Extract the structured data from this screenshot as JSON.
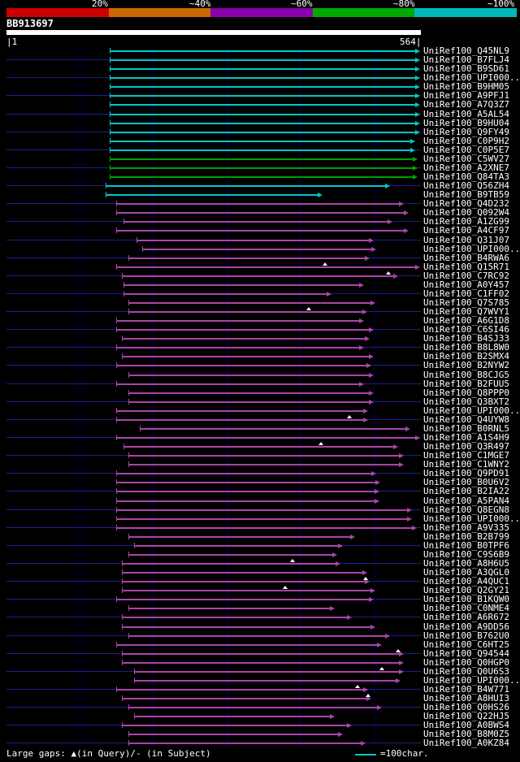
{
  "scalebar": {
    "labels": [
      "20%",
      "~40%",
      "~60%",
      "~80%",
      "~100%"
    ],
    "colors": [
      "#cc0000",
      "#cc6600",
      "#8800aa",
      "#00aa00",
      "#00b8b8"
    ]
  },
  "query": {
    "name": "BB913697",
    "start_label": "|1",
    "end_label": "564|",
    "length": 564
  },
  "legend": {
    "gaps_text": "Large gaps: ▲(in Query)/- (in Subject)",
    "scale_text": "=100char."
  },
  "chart_data": {
    "type": "bar",
    "orientation": "horizontal",
    "x_range": [
      1,
      564
    ],
    "grid_positions": [
      100,
      200,
      300,
      400,
      500
    ],
    "colors": {
      "cyan": "#00c8c8",
      "green": "#00a000",
      "purple": "#aa44aa"
    },
    "rows": [
      {
        "label": "UniRef100_Q45NL9",
        "color": "cyan",
        "start": 141,
        "end": 563
      },
      {
        "label": "UniRef100_B7FLJ4",
        "color": "cyan",
        "start": 141,
        "end": 563
      },
      {
        "label": "UniRef100_B9SD61",
        "color": "cyan",
        "start": 141,
        "end": 563
      },
      {
        "label": "UniRef100_UPI000..",
        "color": "cyan",
        "start": 141,
        "end": 563
      },
      {
        "label": "UniRef100_B9HM05",
        "color": "cyan",
        "start": 141,
        "end": 563
      },
      {
        "label": "UniRef100_A9PFJ1",
        "color": "cyan",
        "start": 141,
        "end": 563
      },
      {
        "label": "UniRef100_A7Q3Z7",
        "color": "cyan",
        "start": 141,
        "end": 563
      },
      {
        "label": "UniRef100_A5AL54",
        "color": "cyan",
        "start": 141,
        "end": 563
      },
      {
        "label": "UniRef100_B9HU04",
        "color": "cyan",
        "start": 141,
        "end": 563
      },
      {
        "label": "UniRef100_Q9FY49",
        "color": "cyan",
        "start": 141,
        "end": 563
      },
      {
        "label": "UniRef100_C0P9H2",
        "color": "cyan",
        "start": 141,
        "end": 556
      },
      {
        "label": "UniRef100_C0P5E7",
        "color": "cyan",
        "start": 141,
        "end": 556
      },
      {
        "label": "UniRef100_C5WV27",
        "color": "green",
        "start": 141,
        "end": 559
      },
      {
        "label": "UniRef100_A2XNE7",
        "color": "green",
        "start": 141,
        "end": 559
      },
      {
        "label": "UniRef100_Q84TA3",
        "color": "green",
        "start": 141,
        "end": 559
      },
      {
        "label": "UniRef100_Q56ZH4",
        "color": "cyan",
        "start": 136,
        "end": 522
      },
      {
        "label": "UniRef100_B9TB59",
        "color": "cyan",
        "start": 136,
        "end": 430
      },
      {
        "label": "UniRef100_Q4D232",
        "color": "purple",
        "start": 150,
        "end": 541
      },
      {
        "label": "UniRef100_Q092W4",
        "color": "purple",
        "start": 150,
        "end": 547
      },
      {
        "label": "UniRef100_A1ZG99",
        "color": "purple",
        "start": 160,
        "end": 525
      },
      {
        "label": "UniRef100_A4CF97",
        "color": "purple",
        "start": 150,
        "end": 547
      },
      {
        "label": "UniRef100_Q31J07",
        "color": "purple",
        "start": 178,
        "end": 500
      },
      {
        "label": "UniRef100_UPI000..",
        "color": "purple",
        "start": 185,
        "end": 503
      },
      {
        "label": "UniRef100_B4RWA6",
        "color": "purple",
        "start": 167,
        "end": 494
      },
      {
        "label": "UniRef100_Q15R71",
        "color": "purple",
        "start": 150,
        "end": 563,
        "gaps": [
          434
        ]
      },
      {
        "label": "UniRef100_C7RC92",
        "color": "purple",
        "start": 158,
        "end": 533,
        "gaps": [
          520
        ]
      },
      {
        "label": "UniRef100_A0Y457",
        "color": "purple",
        "start": 160,
        "end": 487
      },
      {
        "label": "UniRef100_C1FF02",
        "color": "purple",
        "start": 160,
        "end": 443
      },
      {
        "label": "UniRef100_Q7S785",
        "color": "purple",
        "start": 167,
        "end": 502
      },
      {
        "label": "UniRef100_Q7WVY1",
        "color": "purple",
        "start": 167,
        "end": 491,
        "gaps": [
          412
        ]
      },
      {
        "label": "UniRef100_A6G1D8",
        "color": "purple",
        "start": 150,
        "end": 487
      },
      {
        "label": "UniRef100_C6SI46",
        "color": "purple",
        "start": 150,
        "end": 500
      },
      {
        "label": "UniRef100_B4SJ33",
        "color": "purple",
        "start": 158,
        "end": 494
      },
      {
        "label": "UniRef100_B8L8W0",
        "color": "purple",
        "start": 150,
        "end": 487
      },
      {
        "label": "UniRef100_B2SMX4",
        "color": "purple",
        "start": 158,
        "end": 500
      },
      {
        "label": "UniRef100_B2NYW2",
        "color": "purple",
        "start": 150,
        "end": 497
      },
      {
        "label": "UniRef100_B8CJG5",
        "color": "purple",
        "start": 167,
        "end": 500
      },
      {
        "label": "UniRef100_B2FUU5",
        "color": "purple",
        "start": 150,
        "end": 487
      },
      {
        "label": "UniRef100_Q8PPP0",
        "color": "purple",
        "start": 167,
        "end": 500
      },
      {
        "label": "UniRef100_Q3BXT2",
        "color": "purple",
        "start": 167,
        "end": 500
      },
      {
        "label": "UniRef100_UPI000..",
        "color": "purple",
        "start": 150,
        "end": 492
      },
      {
        "label": "UniRef100_Q4UYW8",
        "color": "purple",
        "start": 150,
        "end": 492,
        "gaps": [
          467
        ]
      },
      {
        "label": "UniRef100_B0RNL5",
        "color": "purple",
        "start": 182,
        "end": 550
      },
      {
        "label": "UniRef100_A1S4H9",
        "color": "purple",
        "start": 150,
        "end": 563
      },
      {
        "label": "UniRef100_Q3R497",
        "color": "purple",
        "start": 160,
        "end": 533,
        "gaps": [
          428
        ]
      },
      {
        "label": "UniRef100_C1MGE7",
        "color": "purple",
        "start": 167,
        "end": 541
      },
      {
        "label": "UniRef100_C1WNY2",
        "color": "purple",
        "start": 167,
        "end": 541
      },
      {
        "label": "UniRef100_Q9PD91",
        "color": "purple",
        "start": 150,
        "end": 503
      },
      {
        "label": "UniRef100_B0U6V2",
        "color": "purple",
        "start": 150,
        "end": 509
      },
      {
        "label": "UniRef100_B2IA22",
        "color": "purple",
        "start": 150,
        "end": 508
      },
      {
        "label": "UniRef100_A5PAN4",
        "color": "purple",
        "start": 150,
        "end": 508
      },
      {
        "label": "UniRef100_Q8EGN8",
        "color": "purple",
        "start": 150,
        "end": 552
      },
      {
        "label": "UniRef100_UPI000..",
        "color": "purple",
        "start": 150,
        "end": 552
      },
      {
        "label": "UniRef100_A9V335",
        "color": "purple",
        "start": 150,
        "end": 558
      },
      {
        "label": "UniRef100_B2B799",
        "color": "purple",
        "start": 167,
        "end": 475
      },
      {
        "label": "UniRef100_B0TPF6",
        "color": "purple",
        "start": 174,
        "end": 458
      },
      {
        "label": "UniRef100_C9S6B9",
        "color": "purple",
        "start": 167,
        "end": 450
      },
      {
        "label": "UniRef100_A8H6U5",
        "color": "purple",
        "start": 158,
        "end": 455,
        "gaps": [
          390
        ]
      },
      {
        "label": "UniRef100_A3QGL0",
        "color": "purple",
        "start": 158,
        "end": 491
      },
      {
        "label": "UniRef100_A4QUC1",
        "color": "purple",
        "start": 158,
        "end": 494,
        "gaps": [
          489
        ]
      },
      {
        "label": "UniRef100_Q2GY21",
        "color": "purple",
        "start": 158,
        "end": 502,
        "gaps": [
          380
        ]
      },
      {
        "label": "UniRef100_B1KQW0",
        "color": "purple",
        "start": 150,
        "end": 500
      },
      {
        "label": "UniRef100_C0NME4",
        "color": "purple",
        "start": 167,
        "end": 447
      },
      {
        "label": "UniRef100_A6R672",
        "color": "purple",
        "start": 158,
        "end": 470
      },
      {
        "label": "UniRef100_A9DD56",
        "color": "purple",
        "start": 158,
        "end": 502
      },
      {
        "label": "UniRef100_B762U0",
        "color": "purple",
        "start": 167,
        "end": 522
      },
      {
        "label": "UniRef100_C6HT25",
        "color": "purple",
        "start": 150,
        "end": 511
      },
      {
        "label": "UniRef100_Q94544",
        "color": "purple",
        "start": 158,
        "end": 541,
        "gaps": [
          533
        ]
      },
      {
        "label": "UniRef100_Q0HGP0",
        "color": "purple",
        "start": 158,
        "end": 541
      },
      {
        "label": "UniRef100_Q0U6S3",
        "color": "purple",
        "start": 174,
        "end": 541,
        "gaps": [
          511
        ]
      },
      {
        "label": "UniRef100_UPI000..",
        "color": "purple",
        "start": 174,
        "end": 536
      },
      {
        "label": "UniRef100_B4W771",
        "color": "purple",
        "start": 150,
        "end": 492,
        "gaps": [
          478
        ]
      },
      {
        "label": "UniRef100_A8HUI3",
        "color": "purple",
        "start": 158,
        "end": 497,
        "gaps": [
          492
        ]
      },
      {
        "label": "UniRef100_Q0HS26",
        "color": "purple",
        "start": 167,
        "end": 511
      },
      {
        "label": "UniRef100_Q22HJ5",
        "color": "purple",
        "start": 174,
        "end": 447
      },
      {
        "label": "UniRef100_A0BWS4",
        "color": "purple",
        "start": 158,
        "end": 470
      },
      {
        "label": "UniRef100_B8M0Z5",
        "color": "purple",
        "start": 167,
        "end": 458
      },
      {
        "label": "UniRef100_A0KZ84",
        "color": "purple",
        "start": 167,
        "end": 489
      }
    ]
  }
}
